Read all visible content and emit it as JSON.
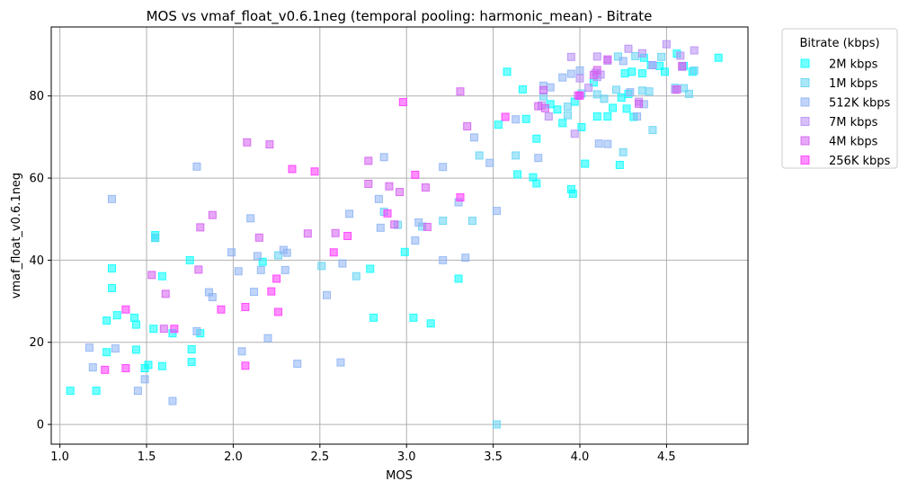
{
  "chart_data": {
    "type": "scatter",
    "title": "MOS vs vmaf_float_v0.6.1neg (temporal pooling: harmonic_mean) - Bitrate",
    "xlabel": "MOS",
    "ylabel": "vmaf_float_v0.6.1neg",
    "xlim": [
      0.95,
      4.97
    ],
    "ylim": [
      -4.8,
      96.8
    ],
    "xticks": [
      1.0,
      1.5,
      2.0,
      2.5,
      3.0,
      3.5,
      4.0,
      4.5
    ],
    "xtick_labels": [
      "1.0",
      "1.5",
      "2.0",
      "2.5",
      "3.0",
      "3.5",
      "4.0",
      "4.5"
    ],
    "yticks": [
      0,
      20,
      40,
      60,
      80
    ],
    "ytick_labels": [
      "0",
      "20",
      "40",
      "60",
      "80"
    ],
    "grid": true,
    "marker": "square",
    "legend": {
      "title": "Bitrate (kbps)",
      "placement": "outside-top-right"
    },
    "series": [
      {
        "name": "2M kbps",
        "color": "#00ffff",
        "points": [
          [
            1.06,
            8.2
          ],
          [
            1.21,
            8.2
          ],
          [
            1.27,
            25.3
          ],
          [
            1.27,
            17.6
          ],
          [
            1.3,
            38.0
          ],
          [
            1.3,
            33.2
          ],
          [
            1.33,
            26.6
          ],
          [
            1.43,
            26.0
          ],
          [
            1.44,
            24.3
          ],
          [
            1.44,
            18.2
          ],
          [
            1.49,
            13.7
          ],
          [
            1.51,
            14.5
          ],
          [
            1.54,
            23.3
          ],
          [
            1.55,
            45.4
          ],
          [
            1.55,
            46.1
          ],
          [
            1.59,
            14.2
          ],
          [
            1.59,
            36.1
          ],
          [
            1.65,
            22.2
          ],
          [
            1.75,
            40.0
          ],
          [
            1.76,
            15.2
          ],
          [
            1.76,
            18.3
          ],
          [
            1.81,
            22.2
          ],
          [
            2.17,
            39.6
          ],
          [
            2.79,
            37.9
          ],
          [
            2.81,
            26.0
          ],
          [
            2.99,
            42.0
          ],
          [
            3.04,
            26.0
          ],
          [
            3.14,
            24.6
          ],
          [
            3.3,
            35.5
          ],
          [
            3.53,
            73.0
          ],
          [
            3.58,
            85.9
          ],
          [
            3.64,
            60.9
          ],
          [
            3.67,
            81.6
          ],
          [
            3.69,
            74.4
          ],
          [
            3.73,
            60.2
          ],
          [
            3.75,
            58.7
          ],
          [
            3.75,
            69.6
          ],
          [
            3.83,
            78.0
          ],
          [
            3.87,
            76.7
          ],
          [
            3.9,
            73.4
          ],
          [
            3.95,
            57.3
          ],
          [
            3.96,
            56.2
          ],
          [
            3.97,
            78.6
          ],
          [
            4.01,
            72.4
          ],
          [
            4.03,
            63.5
          ],
          [
            4.08,
            83.3
          ],
          [
            4.1,
            75.0
          ],
          [
            4.16,
            75.0
          ],
          [
            4.19,
            77.1
          ],
          [
            4.23,
            63.2
          ],
          [
            4.24,
            79.6
          ],
          [
            4.26,
            85.5
          ],
          [
            4.27,
            76.9
          ],
          [
            4.28,
            80.5
          ],
          [
            4.3,
            85.9
          ],
          [
            4.31,
            74.9
          ],
          [
            4.36,
            85.5
          ],
          [
            4.37,
            89.3
          ],
          [
            4.41,
            87.5
          ],
          [
            4.46,
            87.3
          ],
          [
            4.49,
            85.9
          ],
          [
            4.56,
            90.3
          ],
          [
            4.6,
            87.3
          ],
          [
            4.65,
            85.9
          ],
          [
            4.8,
            89.3
          ]
        ]
      },
      {
        "name": "1M kbps",
        "color": "#64d4f4",
        "points": [
          [
            1.55,
            45.5
          ],
          [
            2.26,
            41.2
          ],
          [
            2.51,
            38.6
          ],
          [
            2.71,
            36.1
          ],
          [
            2.87,
            51.8
          ],
          [
            2.95,
            48.6
          ],
          [
            3.09,
            48.2
          ],
          [
            3.21,
            49.6
          ],
          [
            3.38,
            49.6
          ],
          [
            3.42,
            65.5
          ],
          [
            3.52,
            0.0
          ],
          [
            3.63,
            65.5
          ],
          [
            3.79,
            79.9
          ],
          [
            3.93,
            77.4
          ],
          [
            4.01,
            80.6
          ],
          [
            4.1,
            80.4
          ],
          [
            4.14,
            79.3
          ],
          [
            4.21,
            81.5
          ],
          [
            4.25,
            66.3
          ],
          [
            4.32,
            89.7
          ],
          [
            4.36,
            81.3
          ],
          [
            4.4,
            81.1
          ],
          [
            4.42,
            71.7
          ],
          [
            4.47,
            89.5
          ],
          [
            4.55,
            82.0
          ],
          [
            4.6,
            81.9
          ],
          [
            4.63,
            80.5
          ],
          [
            4.66,
            86.2
          ],
          [
            4.22,
            89.6
          ],
          [
            3.93,
            75.3
          ]
        ]
      },
      {
        "name": "512K kbps",
        "color": "#8cb3f4",
        "points": [
          [
            1.17,
            18.7
          ],
          [
            1.19,
            13.9
          ],
          [
            1.3,
            54.9
          ],
          [
            1.32,
            18.5
          ],
          [
            1.45,
            8.2
          ],
          [
            1.49,
            11.0
          ],
          [
            1.65,
            5.7
          ],
          [
            1.79,
            22.7
          ],
          [
            1.79,
            62.8
          ],
          [
            1.86,
            32.2
          ],
          [
            1.88,
            31.0
          ],
          [
            1.99,
            41.9
          ],
          [
            2.03,
            37.3
          ],
          [
            2.05,
            17.8
          ],
          [
            2.1,
            50.2
          ],
          [
            2.12,
            32.3
          ],
          [
            2.14,
            41.0
          ],
          [
            2.16,
            37.6
          ],
          [
            2.2,
            21.0
          ],
          [
            2.29,
            42.5
          ],
          [
            2.3,
            37.6
          ],
          [
            2.31,
            41.8
          ],
          [
            2.37,
            14.8
          ],
          [
            2.54,
            31.5
          ],
          [
            2.62,
            15.1
          ],
          [
            2.63,
            39.2
          ],
          [
            2.67,
            51.3
          ],
          [
            2.84,
            54.9
          ],
          [
            2.85,
            47.9
          ],
          [
            2.87,
            65.1
          ],
          [
            3.05,
            44.8
          ],
          [
            3.07,
            49.2
          ],
          [
            3.21,
            40.0
          ],
          [
            3.21,
            62.7
          ],
          [
            3.3,
            54.1
          ],
          [
            3.34,
            40.6
          ],
          [
            3.39,
            69.9
          ],
          [
            3.48,
            63.7
          ],
          [
            3.52,
            52.0
          ],
          [
            3.63,
            74.3
          ],
          [
            3.76,
            64.9
          ],
          [
            3.79,
            82.5
          ],
          [
            3.83,
            82.1
          ],
          [
            3.9,
            84.5
          ],
          [
            3.95,
            85.4
          ],
          [
            4.0,
            86.2
          ],
          [
            4.11,
            68.4
          ],
          [
            4.16,
            68.3
          ],
          [
            4.29,
            80.9
          ],
          [
            4.33,
            75.0
          ],
          [
            4.37,
            78.0
          ],
          [
            4.25,
            88.5
          ]
        ]
      },
      {
        "name": "7M kbps",
        "color": "#b78cf4",
        "points": [
          [
            3.78,
            77.7
          ],
          [
            3.82,
            75.0
          ],
          [
            3.95,
            89.5
          ],
          [
            3.97,
            70.8
          ],
          [
            4.0,
            84.3
          ],
          [
            4.05,
            82.0
          ],
          [
            4.09,
            85.6
          ],
          [
            4.1,
            89.6
          ],
          [
            4.12,
            85.2
          ],
          [
            4.16,
            88.6
          ],
          [
            4.28,
            91.5
          ],
          [
            4.34,
            78.6
          ],
          [
            4.42,
            87.5
          ],
          [
            4.5,
            92.6
          ],
          [
            4.55,
            81.5
          ],
          [
            4.58,
            89.8
          ],
          [
            4.59,
            87.1
          ],
          [
            4.66,
            91.1
          ],
          [
            4.1,
            84.6
          ],
          [
            4.36,
            90.4
          ]
        ]
      },
      {
        "name": "4M kbps",
        "color": "#d35ef0",
        "points": [
          [
            1.53,
            36.4
          ],
          [
            1.6,
            23.3
          ],
          [
            1.61,
            31.8
          ],
          [
            1.8,
            37.7
          ],
          [
            1.81,
            48.0
          ],
          [
            1.88,
            51.0
          ],
          [
            2.08,
            68.7
          ],
          [
            2.15,
            45.5
          ],
          [
            2.21,
            68.2
          ],
          [
            2.43,
            46.5
          ],
          [
            2.59,
            46.6
          ],
          [
            2.78,
            58.6
          ],
          [
            2.78,
            64.2
          ],
          [
            2.9,
            58.0
          ],
          [
            2.93,
            48.7
          ],
          [
            2.96,
            56.6
          ],
          [
            3.11,
            57.7
          ],
          [
            3.12,
            48.1
          ],
          [
            3.31,
            81.1
          ],
          [
            3.35,
            72.6
          ],
          [
            3.76,
            77.5
          ],
          [
            3.79,
            81.4
          ],
          [
            3.99,
            80.1
          ],
          [
            4.08,
            85.1
          ],
          [
            4.16,
            88.9
          ],
          [
            4.34,
            78.1
          ],
          [
            4.56,
            81.6
          ],
          [
            4.59,
            87.3
          ],
          [
            3.8,
            77.0
          ],
          [
            4.1,
            86.3
          ]
        ]
      },
      {
        "name": "256K kbps",
        "color": "#ff33ff",
        "points": [
          [
            1.26,
            13.3
          ],
          [
            1.38,
            28.0
          ],
          [
            1.38,
            13.7
          ],
          [
            1.66,
            23.3
          ],
          [
            1.93,
            28.0
          ],
          [
            2.07,
            28.6
          ],
          [
            2.07,
            14.3
          ],
          [
            2.22,
            32.4
          ],
          [
            2.25,
            35.5
          ],
          [
            2.26,
            27.4
          ],
          [
            2.34,
            62.2
          ],
          [
            2.47,
            61.6
          ],
          [
            2.58,
            41.9
          ],
          [
            2.66,
            45.9
          ],
          [
            2.89,
            51.4
          ],
          [
            2.98,
            78.5
          ],
          [
            3.05,
            60.8
          ],
          [
            3.31,
            55.3
          ],
          [
            3.57,
            74.9
          ],
          [
            4.0,
            80.1
          ]
        ]
      }
    ]
  }
}
